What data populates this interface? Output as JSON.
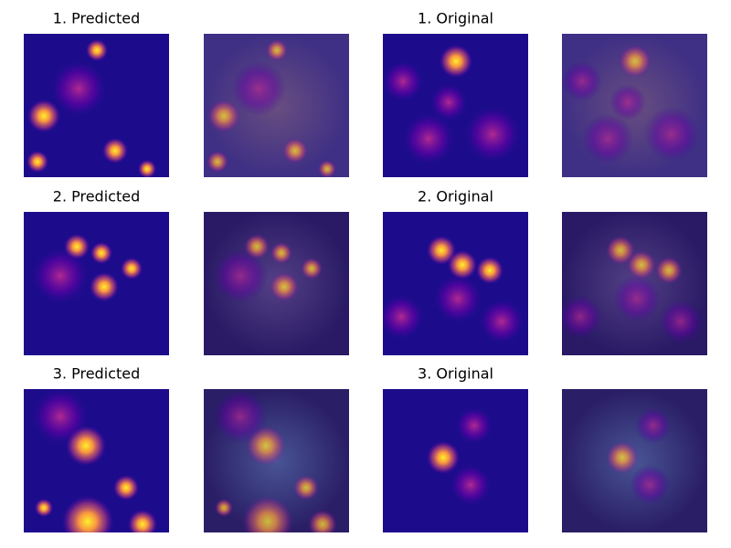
{
  "rows": [
    {
      "predicted_title": "1. Predicted",
      "original_title": "1. Original"
    },
    {
      "predicted_title": "2. Predicted",
      "original_title": "2. Original"
    },
    {
      "predicted_title": "3. Predicted",
      "original_title": "3. Original"
    }
  ]
}
